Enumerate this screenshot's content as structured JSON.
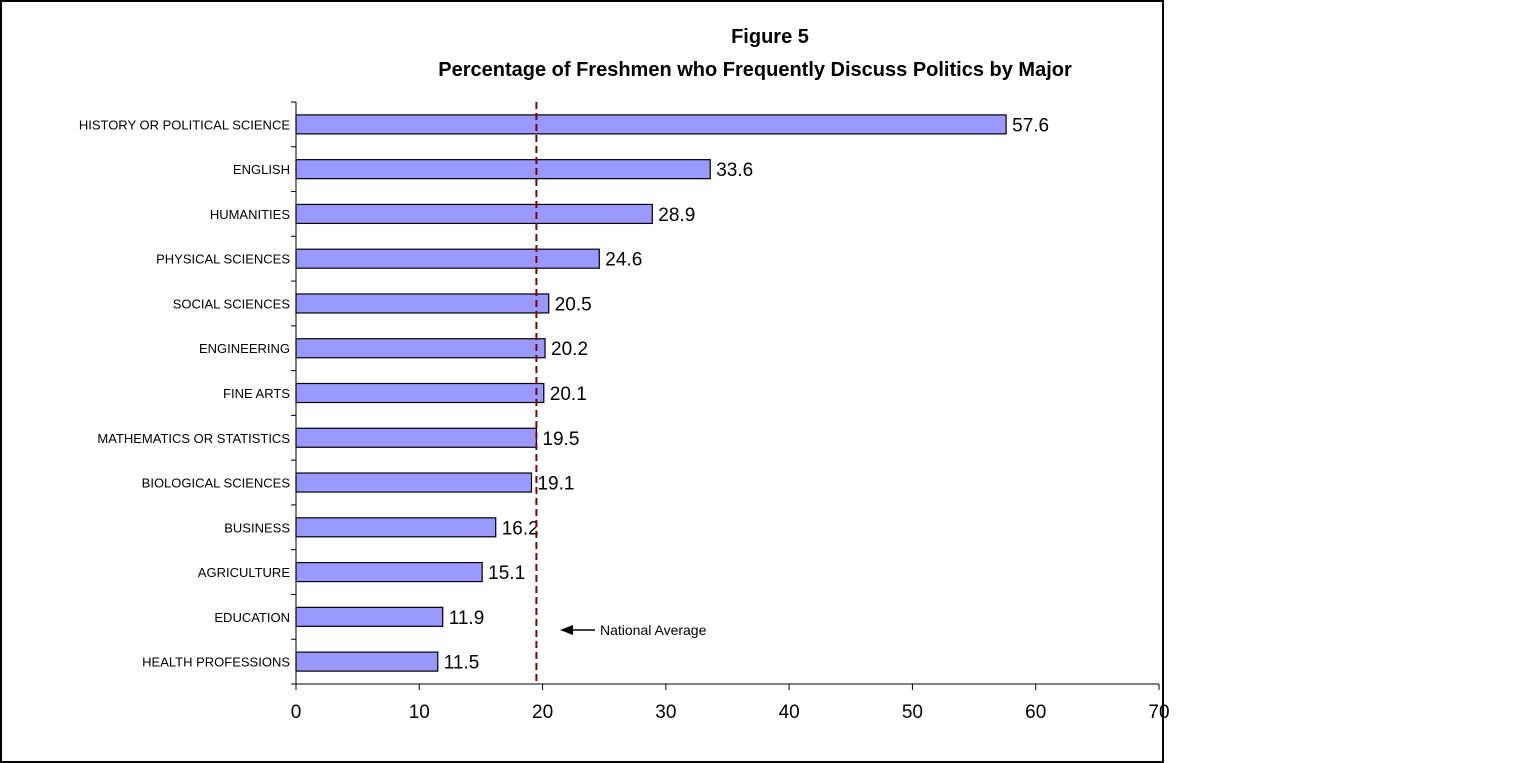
{
  "chart_data": {
    "type": "bar",
    "orientation": "horizontal",
    "title": "Figure 5",
    "subtitle": "Percentage of Freshmen who Frequently Discuss Politics by Major",
    "categories": [
      "HISTORY OR POLITICAL SCIENCE",
      "ENGLISH",
      "HUMANITIES",
      "PHYSICAL SCIENCES",
      "SOCIAL SCIENCES",
      "ENGINEERING",
      "FINE ARTS",
      "MATHEMATICS OR STATISTICS",
      "BIOLOGICAL SCIENCES",
      "BUSINESS",
      "AGRICULTURE",
      "EDUCATION",
      "HEALTH PROFESSIONS"
    ],
    "values": [
      57.6,
      33.6,
      28.9,
      24.6,
      20.5,
      20.2,
      20.1,
      19.5,
      19.1,
      16.2,
      15.1,
      11.9,
      11.5
    ],
    "data_labels": [
      "57.6",
      "33.6",
      "28.9",
      "24.6",
      "20.5",
      "20.2",
      "20.1",
      "19.5",
      "19.1",
      "16.2",
      "15.1",
      "11.9",
      "11.5"
    ],
    "xlim": [
      0,
      70
    ],
    "xticks": [
      0,
      10,
      20,
      30,
      40,
      50,
      60,
      70
    ],
    "xlabel": "",
    "ylabel": "",
    "grid": false,
    "reference_line": {
      "value": 19.5,
      "label": "National Average",
      "color": "#800000",
      "style": "dashed"
    },
    "colors": {
      "bar_fill": "#9999ff",
      "bar_stroke": "#000000",
      "reference_line": "#800000"
    }
  }
}
